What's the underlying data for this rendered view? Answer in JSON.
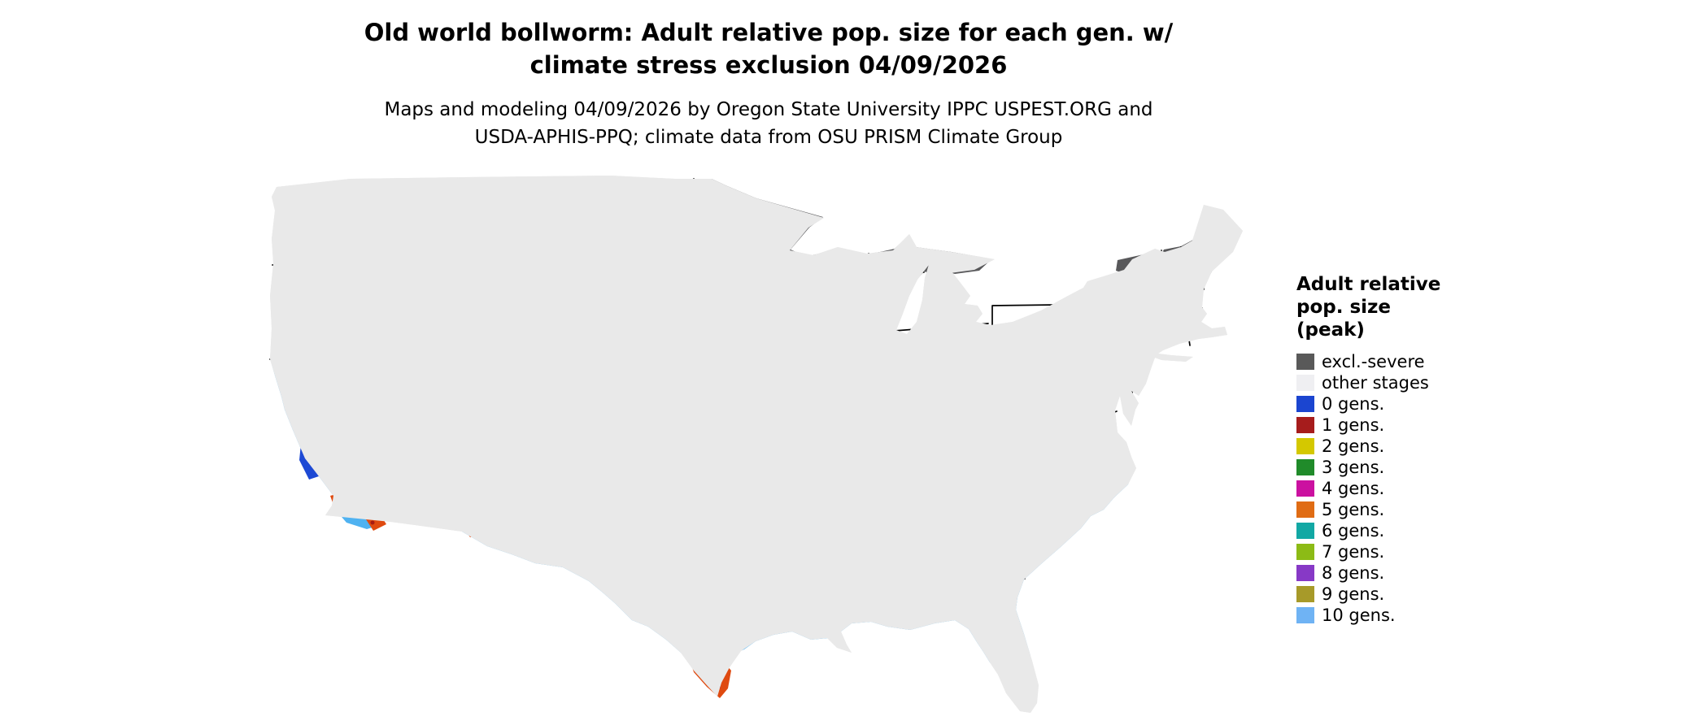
{
  "title": {
    "line1": "Old world bollworm: Adult relative pop. size for each gen. w/",
    "line2": "climate stress exclusion 04/09/2026"
  },
  "subtitle": {
    "line1": "Maps and modeling 04/09/2026 by Oregon State University IPPC USPEST.ORG and",
    "line2": "USDA-APHIS-PPQ; climate data from OSU PRISM Climate Group"
  },
  "legend": {
    "title_lines": [
      "Adult relative",
      "pop. size",
      "(peak)"
    ],
    "items": [
      {
        "label": "excl.-severe",
        "color": "#595959"
      },
      {
        "label": "other stages",
        "color": "#efeff2"
      },
      {
        "label": "0 gens.",
        "color": "#1b45d0"
      },
      {
        "label": "1 gens.",
        "color": "#a61c1c"
      },
      {
        "label": "2 gens.",
        "color": "#d4c800"
      },
      {
        "label": "3 gens.",
        "color": "#208b2a"
      },
      {
        "label": "4 gens.",
        "color": "#cb11a0"
      },
      {
        "label": "5 gens.",
        "color": "#e06c14"
      },
      {
        "label": "6 gens.",
        "color": "#12a8a4"
      },
      {
        "label": "7 gens.",
        "color": "#8cbb16"
      },
      {
        "label": "8 gens.",
        "color": "#8739c6"
      },
      {
        "label": "9 gens.",
        "color": "#a79a29"
      },
      {
        "label": "10 gens.",
        "color": "#6fb3f4"
      }
    ]
  },
  "map_colors": {
    "land": "#e9e9e9",
    "border": "#000000",
    "exclusion_gray": "#58585a",
    "light_blue_band": "#4fb2f1",
    "dark_blue_band": "#1d49d4",
    "hotspot_orange": "#df4a10",
    "hotspot_dark_red": "#a81b12"
  }
}
